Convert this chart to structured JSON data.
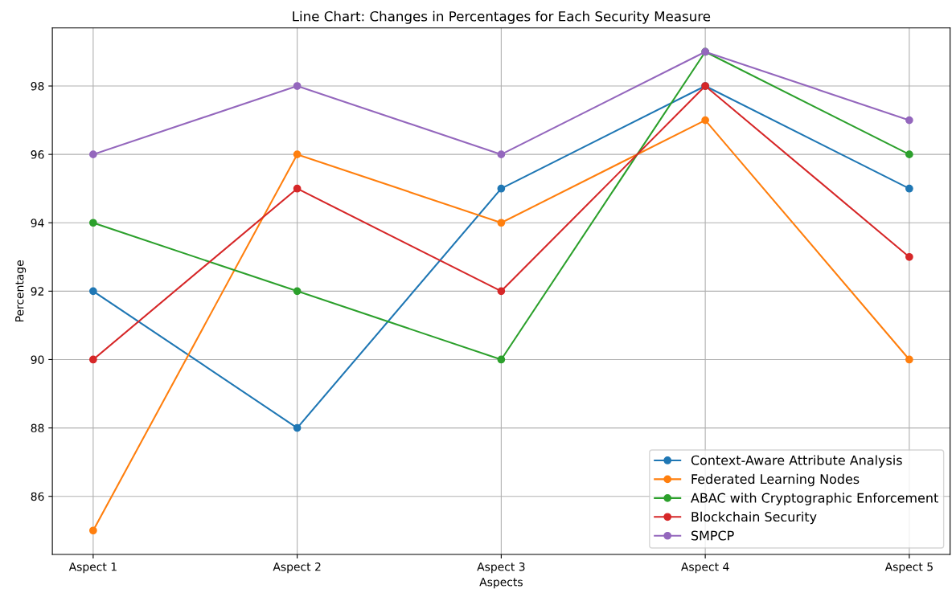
{
  "chart_data": {
    "type": "line",
    "title": "Line Chart: Changes in Percentages for Each Security Measure",
    "xlabel": "Aspects",
    "ylabel": "Percentage",
    "categories": [
      "Aspect 1",
      "Aspect 2",
      "Aspect 3",
      "Aspect 4",
      "Aspect 5"
    ],
    "series": [
      {
        "name": "Context-Aware Attribute Analysis",
        "color": "#1f77b4",
        "values": [
          92,
          88,
          95,
          98,
          95
        ]
      },
      {
        "name": "Federated Learning Nodes",
        "color": "#ff7f0e",
        "values": [
          85,
          96,
          94,
          97,
          90
        ]
      },
      {
        "name": "ABAC with Cryptographic Enforcement",
        "color": "#2ca02c",
        "values": [
          94,
          92,
          90,
          99,
          96
        ]
      },
      {
        "name": "Blockchain Security",
        "color": "#d62728",
        "values": [
          90,
          95,
          92,
          98,
          93
        ]
      },
      {
        "name": "SMPCP",
        "color": "#9467bd",
        "values": [
          96,
          98,
          96,
          99,
          97
        ]
      }
    ],
    "ylim": [
      84.3,
      99.7
    ],
    "yticks": [
      86,
      88,
      90,
      92,
      94,
      96,
      98
    ],
    "grid": true,
    "legend": "lower right",
    "marker": "circle",
    "line_style": "solid"
  }
}
